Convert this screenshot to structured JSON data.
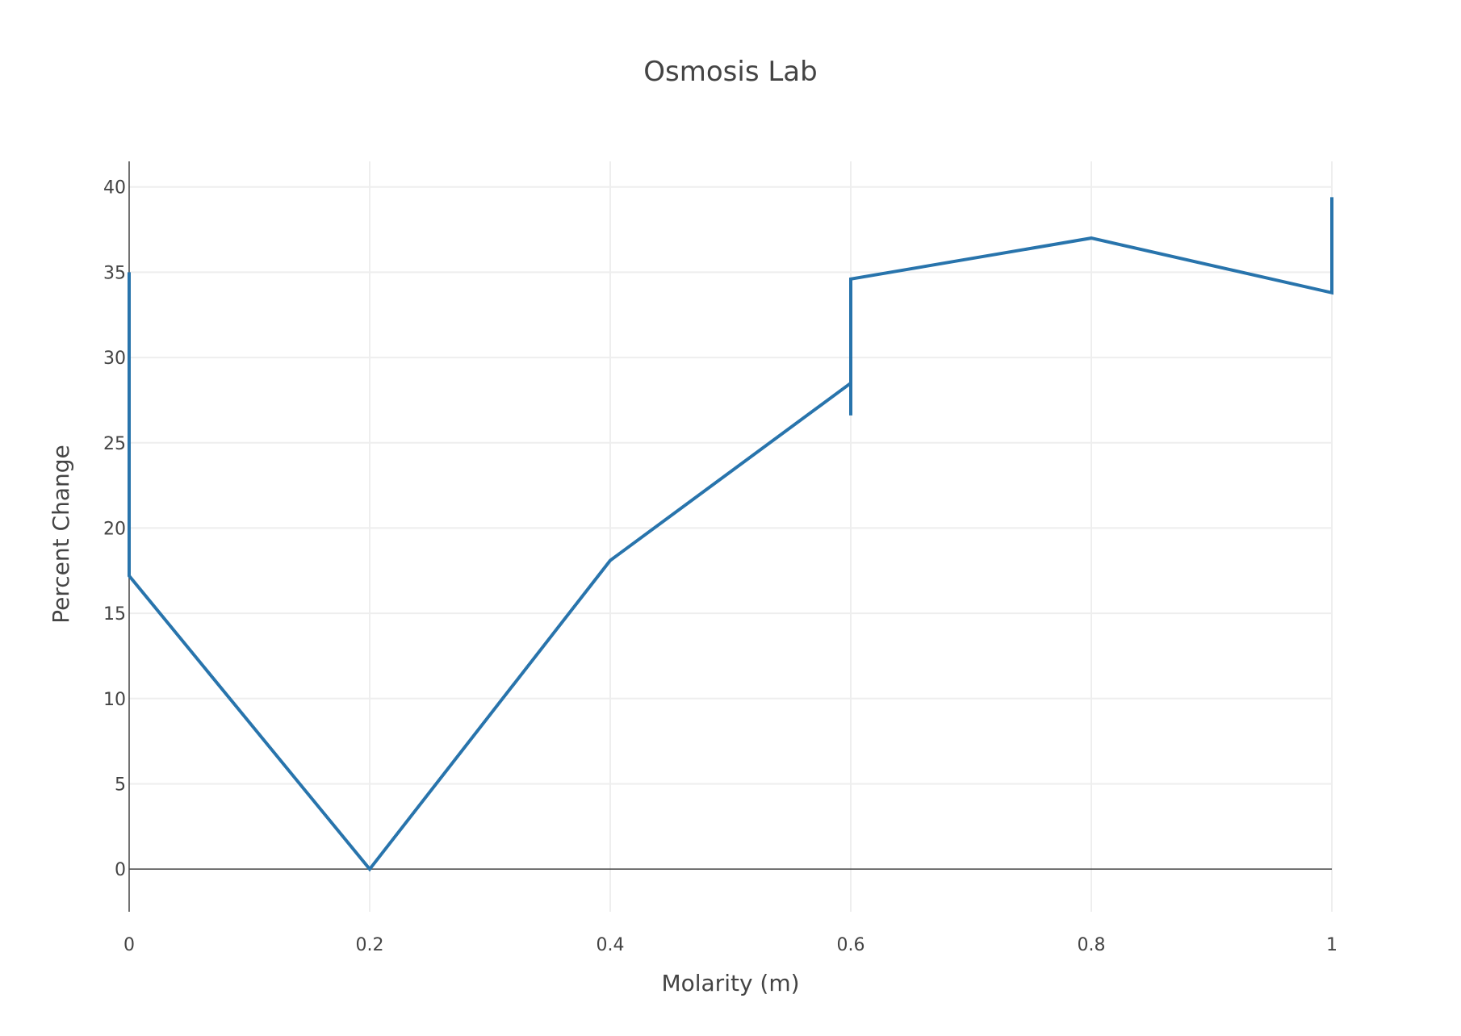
{
  "chart_data": {
    "type": "line",
    "title": "Osmosis Lab",
    "xlabel": "Molarity (m)",
    "ylabel": "Percent Change",
    "xlim": [
      0,
      1
    ],
    "ylim": [
      -2.5,
      41.5
    ],
    "xticks": [
      0,
      0.2,
      0.4,
      0.6,
      0.8,
      1
    ],
    "xtick_labels": [
      "0",
      "0.2",
      "0.4",
      "0.6",
      "0.8",
      "1"
    ],
    "yticks": [
      0,
      5,
      10,
      15,
      20,
      25,
      30,
      35,
      40
    ],
    "ytick_labels": [
      "0",
      "5",
      "10",
      "15",
      "20",
      "25",
      "30",
      "35",
      "40"
    ],
    "grid": true,
    "color": "#2874ac",
    "series": [
      {
        "x": [
          0,
          0,
          0,
          0.2,
          0.4,
          0.6,
          0.6,
          0.6,
          0.8,
          1,
          1
        ],
        "y": [
          35,
          17.2,
          17.2,
          0,
          18.1,
          28.5,
          26.6,
          34.6,
          37,
          33.8,
          39.4
        ]
      }
    ]
  }
}
